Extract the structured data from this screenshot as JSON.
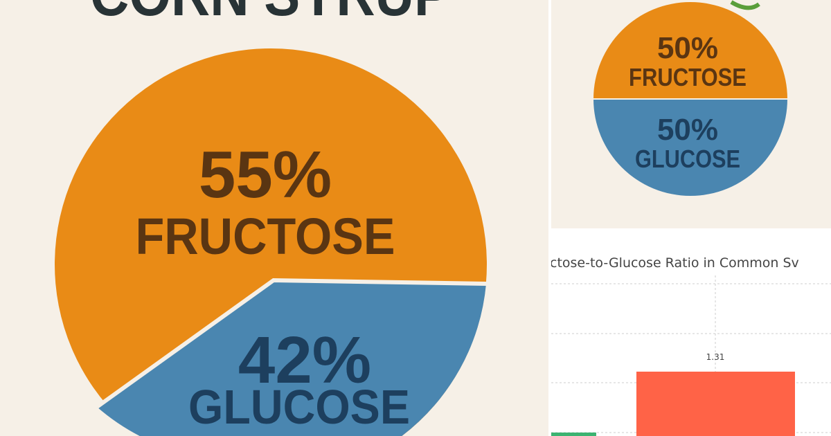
{
  "colors": {
    "fructose": "#e98b16",
    "glucose": "#4a86b0",
    "text_dark": "#283336",
    "label_fructose": "#5a3512",
    "label_glucose": "#1d3f5e",
    "bar_red": "#ff6347",
    "bar_green": "#3cb371",
    "leaf": "#5a9e3a"
  },
  "left_panel": {
    "title": "CORN SYRUP",
    "slices": [
      {
        "percent": "55%",
        "label": "FRUCTOSE"
      },
      {
        "percent": "42%",
        "label": "GLUCOSE"
      }
    ]
  },
  "right_top_panel": {
    "slices": [
      {
        "percent": "50%",
        "label": "FRUCTOSE"
      },
      {
        "percent": "50%",
        "label": "GLUCOSE"
      }
    ]
  },
  "chart_data": [
    {
      "type": "pie",
      "values": [
        55,
        42
      ],
      "labels": [
        "FRUCTOSE",
        "GLUCOSE"
      ],
      "title": "CORN SYRUP"
    },
    {
      "type": "pie",
      "values": [
        50,
        50
      ],
      "labels": [
        "FRUCTOSE",
        "GLUCOSE"
      ]
    },
    {
      "type": "bar",
      "title": "ctose-to-Glucose Ratio in Common Sv",
      "values": [
        1.31
      ],
      "data_labels": [
        "1.31"
      ],
      "grid": true
    }
  ]
}
